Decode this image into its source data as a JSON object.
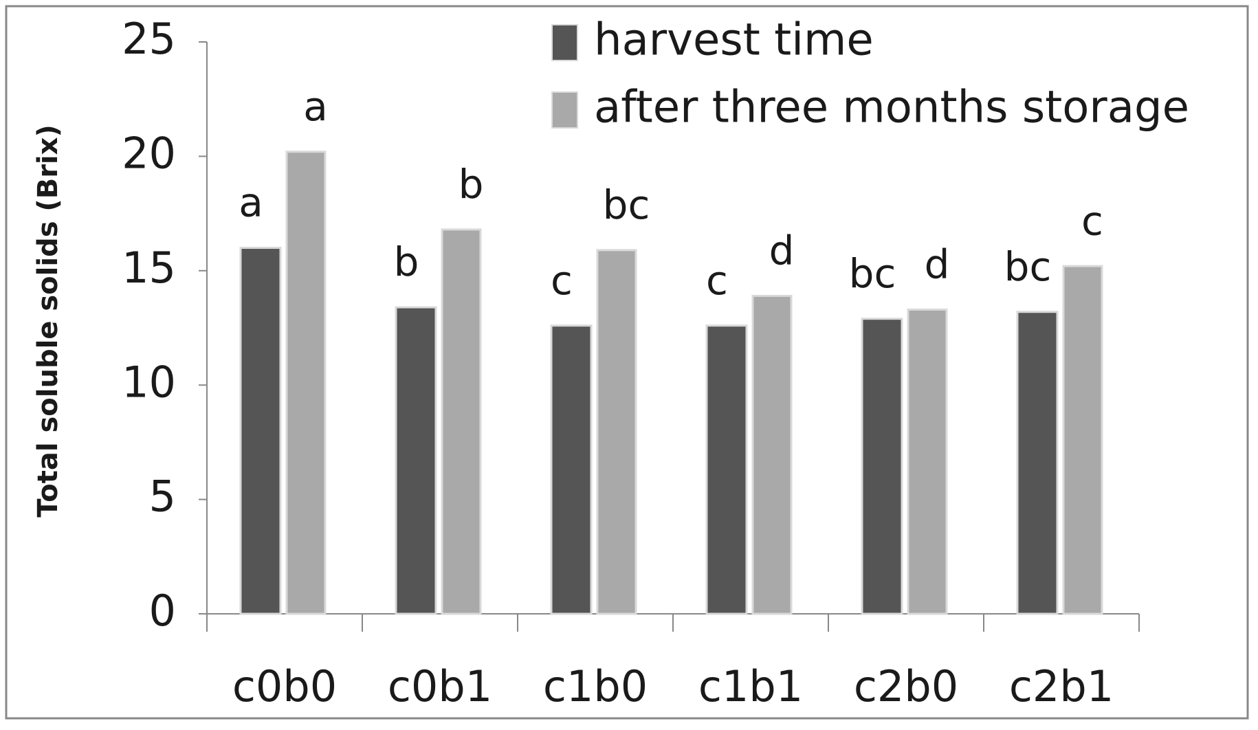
{
  "chart_data": {
    "type": "bar",
    "y_label": "Total soluble solids (Brix)",
    "categories": [
      "c0b0",
      "c0b1",
      "c1b0",
      "c1b1",
      "c2b0",
      "c2b1"
    ],
    "series": [
      {
        "name": "harvest time",
        "color": "#555555",
        "values": [
          16.0,
          13.4,
          12.6,
          12.6,
          12.9,
          13.2
        ],
        "letters": [
          "a",
          "b",
          "c",
          "c",
          "bc",
          "bc"
        ]
      },
      {
        "name": "after three months storage",
        "color": "#a9a9a9",
        "values": [
          20.2,
          16.8,
          15.9,
          13.9,
          13.3,
          15.2
        ],
        "letters": [
          "a",
          "b",
          "bc",
          "d",
          "d",
          "c"
        ]
      }
    ],
    "ylim": [
      0,
      25
    ],
    "yticks": [
      0,
      5,
      10,
      15,
      20,
      25
    ],
    "grid": false
  }
}
